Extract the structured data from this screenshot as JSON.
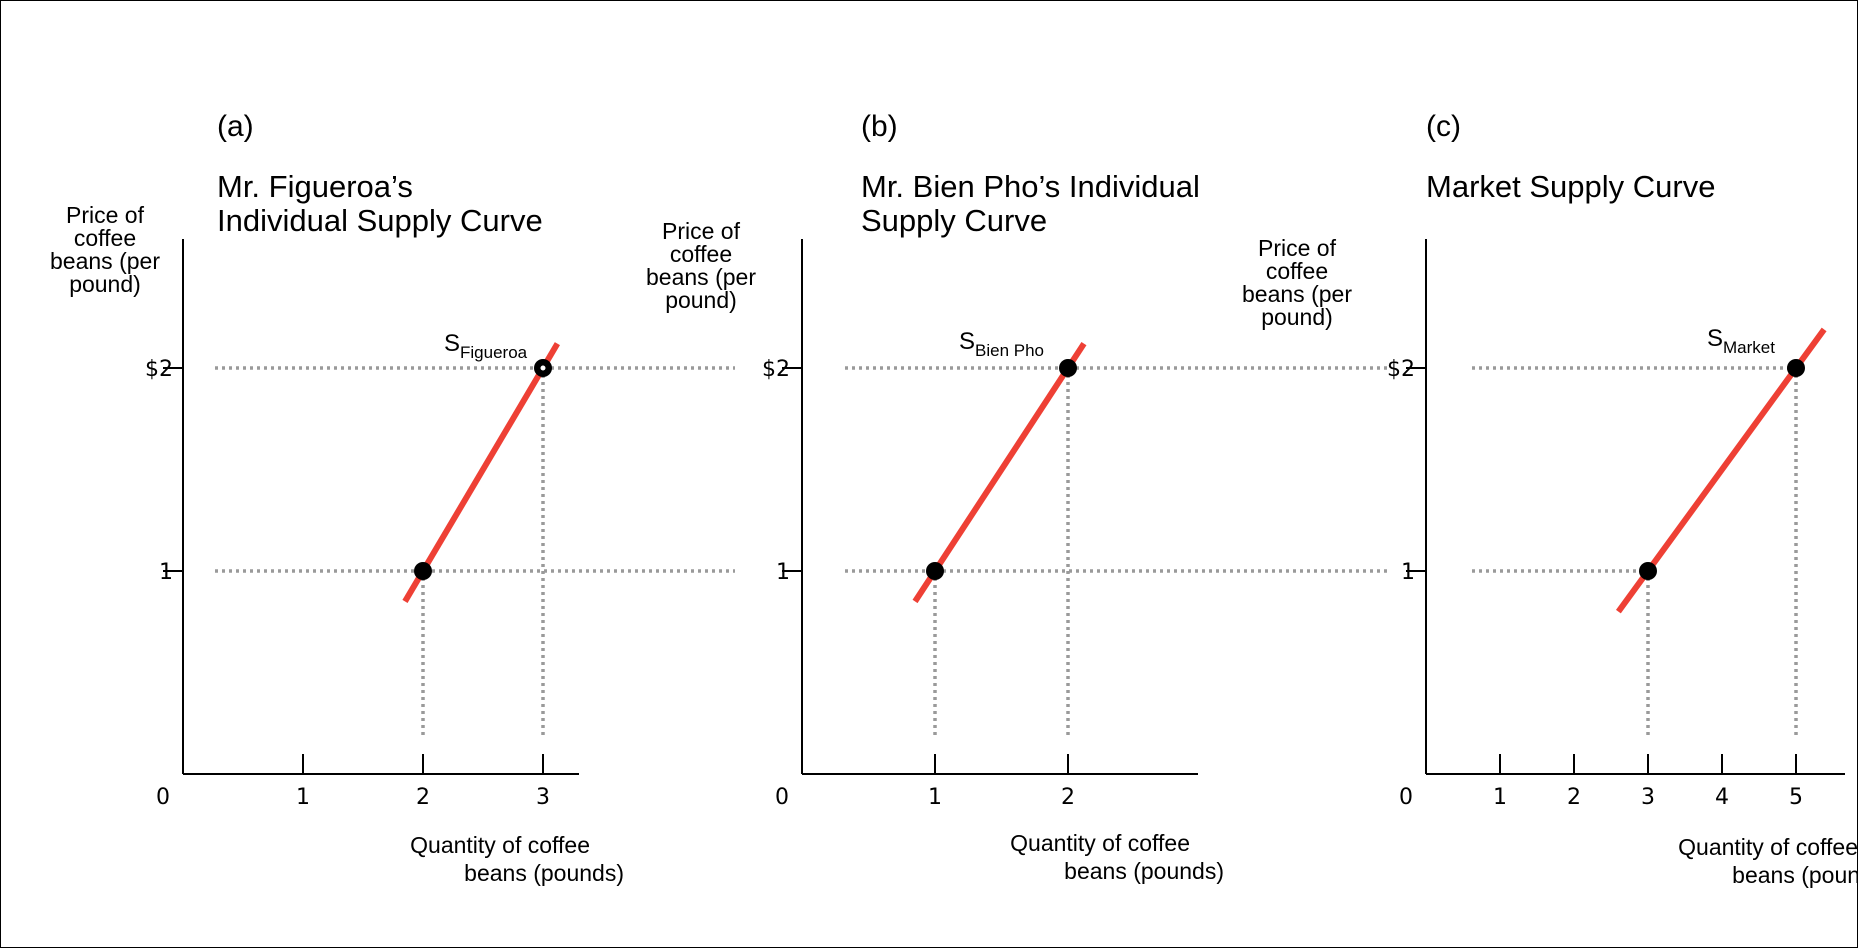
{
  "colors": {
    "curve": "#ee4035",
    "axis": "#000000",
    "guide": "#9a9a9a",
    "point": "#000000",
    "background": "#ffffff"
  },
  "chart_data": [
    {
      "type": "line",
      "panel_label": "(a)",
      "title_lines": [
        "Mr. Figueroa’s",
        "Individual Supply Curve"
      ],
      "ylabel_lines": [
        "Price of",
        "coffee",
        "beans (per",
        "pound)"
      ],
      "xlabel_lines": [
        "Quantity of coffee",
        "beans (pounds)"
      ],
      "origin_label": "0",
      "xticks": [
        {
          "value": 1,
          "label": "1"
        },
        {
          "value": 2,
          "label": "2"
        },
        {
          "value": 3,
          "label": "3"
        }
      ],
      "yticks": [
        {
          "value": 1,
          "label": "1"
        },
        {
          "value": 2,
          "label": "$2"
        }
      ],
      "xlim": [
        0,
        3.3
      ],
      "ylim": [
        0,
        2.7
      ],
      "grid": false,
      "series": [
        {
          "label_main": "S",
          "label_sub": "Figueroa",
          "x": [
            2,
            3
          ],
          "y": [
            1,
            2
          ],
          "line_extent_x": [
            1.85,
            3.12
          ]
        }
      ],
      "guide_x_to": 4.6
    },
    {
      "type": "line",
      "panel_label": "(b)",
      "title_lines": [
        "Mr. Bien Pho’s Individual",
        "Supply Curve"
      ],
      "ylabel_lines": [
        "Price of",
        "coffee",
        "beans (per",
        "pound)"
      ],
      "xlabel_lines": [
        "Quantity of coffee",
        "beans (pounds)"
      ],
      "origin_label": "0",
      "xticks": [
        {
          "value": 1,
          "label": "1"
        },
        {
          "value": 2,
          "label": "2"
        }
      ],
      "yticks": [
        {
          "value": 1,
          "label": "1"
        },
        {
          "value": 2,
          "label": "$2"
        }
      ],
      "xlim": [
        0,
        3
      ],
      "ylim": [
        0,
        2.7
      ],
      "grid": false,
      "series": [
        {
          "label_main": "S",
          "label_sub": "Bien Pho",
          "x": [
            1,
            2
          ],
          "y": [
            1,
            2
          ],
          "line_extent_x": [
            0.85,
            2.12
          ]
        }
      ],
      "guide_x_to": 4.4
    },
    {
      "type": "line",
      "panel_label": "(c)",
      "title_lines": [
        "Market Supply Curve"
      ],
      "ylabel_lines": [
        "Price of",
        "coffee",
        "beans (per",
        "pound)"
      ],
      "xlabel_lines": [
        "Quantity of coffee",
        "beans (pounds)"
      ],
      "origin_label": "0",
      "xticks": [
        {
          "value": 1,
          "label": "1"
        },
        {
          "value": 2,
          "label": "2"
        },
        {
          "value": 3,
          "label": "3"
        },
        {
          "value": 4,
          "label": "4"
        },
        {
          "value": 5,
          "label": "5"
        }
      ],
      "yticks": [
        {
          "value": 1,
          "label": "1"
        },
        {
          "value": 2,
          "label": "$2"
        }
      ],
      "xlim": [
        0,
        5.7
      ],
      "ylim": [
        0,
        2.7
      ],
      "grid": false,
      "series": [
        {
          "label_main": "S",
          "label_sub": "Market",
          "x": [
            3,
            5
          ],
          "y": [
            1,
            2
          ],
          "line_extent_x": [
            2.6,
            5.38
          ]
        }
      ],
      "guide_x_to": 5
    }
  ]
}
